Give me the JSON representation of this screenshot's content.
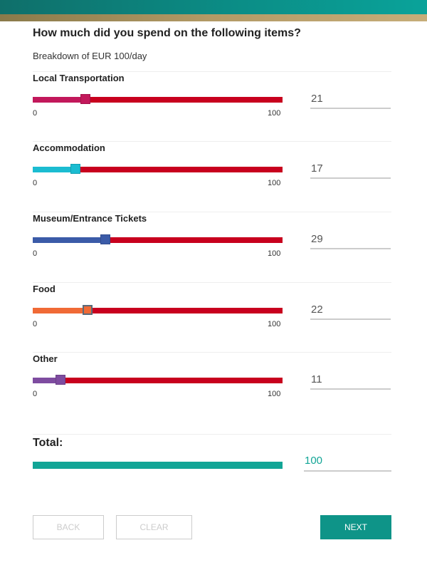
{
  "header": {
    "question": "How much did you spend on the following items?",
    "subtitle": "Breakdown of EUR 100/day"
  },
  "slider_range": {
    "min": 0,
    "max": 100
  },
  "items": [
    {
      "label": "Local Transportation",
      "value": "21",
      "color": "#c2185b"
    },
    {
      "label": "Accommodation",
      "value": "17",
      "color": "#1bbcd1"
    },
    {
      "label": "Museum/Entrance Tickets",
      "value": "29",
      "color": "#3b5ba8"
    },
    {
      "label": "Food",
      "value": "22",
      "color": "#f06a36",
      "focused": true
    },
    {
      "label": "Other",
      "value": "11",
      "color": "#7e4ca0"
    }
  ],
  "total": {
    "label": "Total:",
    "value": "100",
    "color": "#12a596"
  },
  "buttons": {
    "back": "BACK",
    "clear": "CLEAR",
    "next": "NEXT"
  },
  "colors": {
    "track": "#c8001e",
    "accent": "#0e9488"
  }
}
